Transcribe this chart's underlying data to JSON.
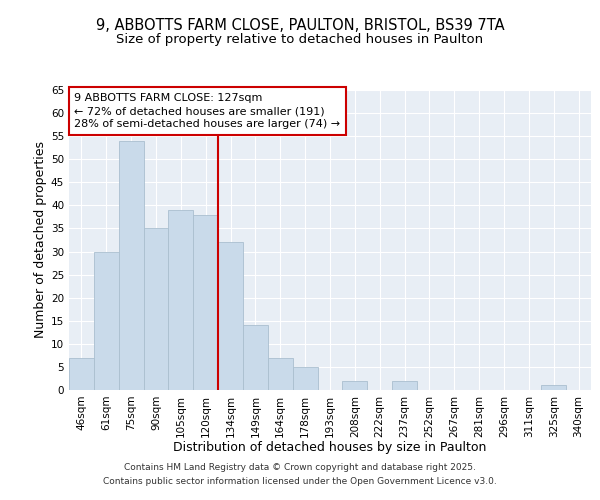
{
  "title_line1": "9, ABBOTTS FARM CLOSE, PAULTON, BRISTOL, BS39 7TA",
  "title_line2": "Size of property relative to detached houses in Paulton",
  "xlabel": "Distribution of detached houses by size in Paulton",
  "ylabel": "Number of detached properties",
  "categories": [
    "46sqm",
    "61sqm",
    "75sqm",
    "90sqm",
    "105sqm",
    "120sqm",
    "134sqm",
    "149sqm",
    "164sqm",
    "178sqm",
    "193sqm",
    "208sqm",
    "222sqm",
    "237sqm",
    "252sqm",
    "267sqm",
    "281sqm",
    "296sqm",
    "311sqm",
    "325sqm",
    "340sqm"
  ],
  "values": [
    7,
    30,
    54,
    35,
    39,
    38,
    32,
    14,
    7,
    5,
    0,
    2,
    0,
    2,
    0,
    0,
    0,
    0,
    0,
    1,
    0
  ],
  "bar_color": "#c9daea",
  "bar_edgecolor": "#aabfcf",
  "vline_color": "#cc0000",
  "vline_index": 6,
  "annotation_text": "9 ABBOTTS FARM CLOSE: 127sqm\n← 72% of detached houses are smaller (191)\n28% of semi-detached houses are larger (74) →",
  "annotation_box_facecolor": "#ffffff",
  "annotation_box_edgecolor": "#cc0000",
  "ylim": [
    0,
    65
  ],
  "yticks": [
    0,
    5,
    10,
    15,
    20,
    25,
    30,
    35,
    40,
    45,
    50,
    55,
    60,
    65
  ],
  "background_color": "#ffffff",
  "plot_background_color": "#e8eef5",
  "grid_color": "#ffffff",
  "footer_line1": "Contains HM Land Registry data © Crown copyright and database right 2025.",
  "footer_line2": "Contains public sector information licensed under the Open Government Licence v3.0.",
  "title_fontsize": 10.5,
  "subtitle_fontsize": 9.5,
  "axis_label_fontsize": 9,
  "tick_fontsize": 7.5,
  "annotation_fontsize": 8,
  "footer_fontsize": 6.5
}
